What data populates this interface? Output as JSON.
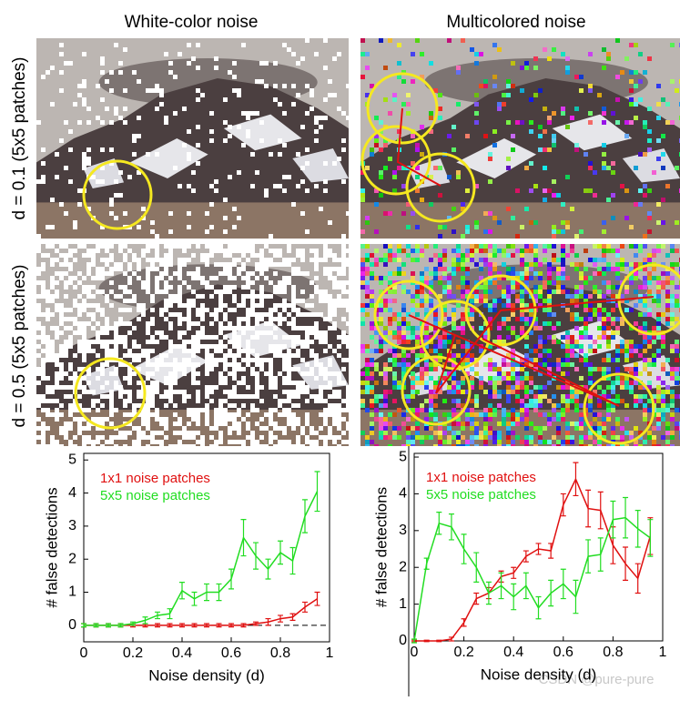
{
  "figure": {
    "column_titles": [
      "White-color noise",
      "Multicolored noise"
    ],
    "row_labels": [
      "d = 0.1 (5x5 patches)",
      "d = 0.5 (5x5 patches)"
    ],
    "watermark": "CSDN @pure-pure"
  },
  "chart_data": [
    {
      "type": "line",
      "xlabel": "Noise density (d)",
      "ylabel": "# false detections",
      "x": [
        0,
        0.05,
        0.1,
        0.15,
        0.2,
        0.25,
        0.3,
        0.35,
        0.4,
        0.45,
        0.5,
        0.55,
        0.6,
        0.65,
        0.7,
        0.75,
        0.8,
        0.85,
        0.9,
        0.95
      ],
      "xlim": [
        0,
        1
      ],
      "xticks": [
        0,
        0.2,
        0.4,
        0.6,
        0.8,
        1
      ],
      "ylim": [
        -0.5,
        5.2
      ],
      "yticks": [
        0,
        1,
        2,
        3,
        4,
        5
      ],
      "series": [
        {
          "name": "1x1 noise patches",
          "color": "#e01010",
          "values": [
            0,
            0,
            0,
            0,
            0,
            0,
            0,
            0,
            0,
            0,
            0,
            0,
            0,
            0,
            0.05,
            0.1,
            0.2,
            0.25,
            0.55,
            0.8
          ],
          "errors": [
            0.05,
            0.05,
            0.05,
            0.05,
            0.05,
            0.05,
            0.05,
            0.05,
            0.05,
            0.05,
            0.05,
            0.05,
            0.05,
            0.05,
            0.05,
            0.1,
            0.1,
            0.1,
            0.15,
            0.2
          ]
        },
        {
          "name": "5x5 noise patches",
          "color": "#22dd22",
          "values": [
            0,
            0,
            0,
            0,
            0.05,
            0.15,
            0.3,
            0.35,
            1.05,
            0.8,
            1.0,
            1.0,
            1.4,
            2.65,
            2.1,
            1.7,
            2.2,
            1.95,
            3.3,
            4.05
          ],
          "errors": [
            0.05,
            0.05,
            0.05,
            0.05,
            0.05,
            0.1,
            0.1,
            0.15,
            0.25,
            0.2,
            0.25,
            0.25,
            0.3,
            0.55,
            0.4,
            0.3,
            0.35,
            0.4,
            0.5,
            0.6
          ]
        }
      ]
    },
    {
      "type": "line",
      "xlabel": "Noise density (d)",
      "ylabel": "# false detections",
      "x": [
        0,
        0.05,
        0.1,
        0.15,
        0.2,
        0.25,
        0.3,
        0.35,
        0.4,
        0.45,
        0.5,
        0.55,
        0.6,
        0.65,
        0.7,
        0.75,
        0.8,
        0.85,
        0.9,
        0.95
      ],
      "xlim": [
        0,
        1
      ],
      "xticks": [
        0,
        0.2,
        0.4,
        0.6,
        0.8,
        1
      ],
      "ylim": [
        0,
        5.1
      ],
      "yticks": [
        0,
        1,
        2,
        3,
        4,
        5
      ],
      "series": [
        {
          "name": "1x1 noise patches",
          "color": "#e01010",
          "values": [
            0,
            0,
            0,
            0.05,
            0.5,
            1.15,
            1.3,
            1.75,
            1.85,
            2.3,
            2.5,
            2.45,
            3.7,
            4.4,
            3.6,
            3.55,
            2.6,
            2.1,
            1.7,
            2.85
          ],
          "errors": [
            0.02,
            0.02,
            0.02,
            0.05,
            0.1,
            0.15,
            0.15,
            0.15,
            0.15,
            0.15,
            0.15,
            0.2,
            0.3,
            0.45,
            0.5,
            0.5,
            0.5,
            0.45,
            0.4,
            0.5
          ]
        },
        {
          "name": "5x5 noise patches",
          "color": "#22dd22",
          "values": [
            0,
            2.1,
            3.2,
            3.1,
            2.5,
            2.0,
            1.3,
            1.5,
            1.2,
            1.5,
            0.9,
            1.3,
            1.55,
            1.2,
            2.3,
            2.35,
            3.3,
            3.35,
            3.05,
            2.8
          ],
          "errors": [
            0.05,
            0.15,
            0.3,
            0.35,
            0.4,
            0.4,
            0.3,
            0.35,
            0.35,
            0.35,
            0.3,
            0.35,
            0.4,
            0.45,
            0.45,
            0.45,
            0.5,
            0.55,
            0.5,
            0.5
          ]
        }
      ]
    }
  ]
}
